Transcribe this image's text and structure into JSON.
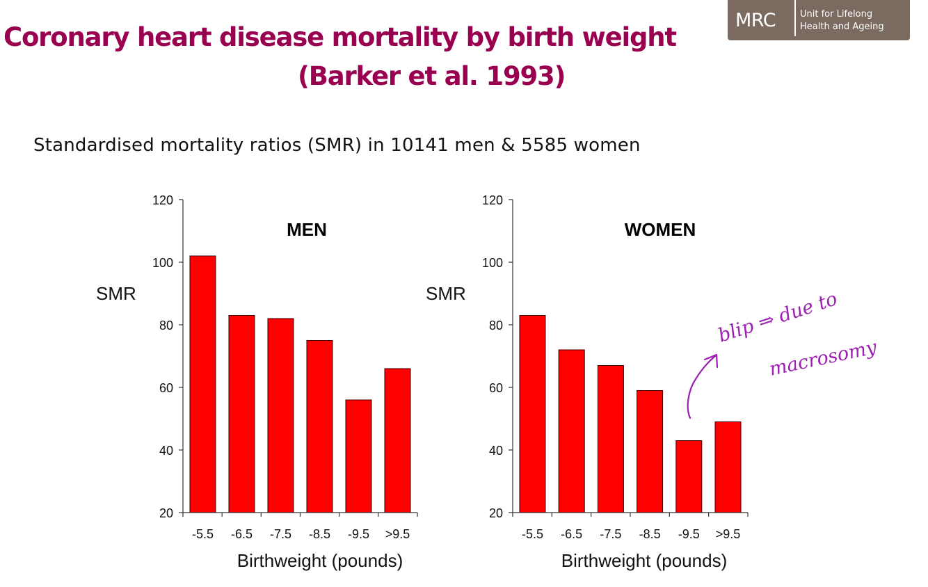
{
  "slide": {
    "title_line1": "Coronary heart disease mortality by birth weight",
    "title_line2": "(Barker et al. 1993)",
    "subtitle": "Standardised mortality ratios (SMR) in 10141 men & 5585 women",
    "logo": {
      "mark": "MRC",
      "line1": "Unit for Lifelong",
      "line2": "Health and Ageing"
    },
    "colors": {
      "title": "#990050",
      "bar": "#ff0000",
      "logo_bg": "#7a6a60",
      "annotation": "#9b1fb0"
    },
    "annotation": {
      "line1": "blip ⇒ due to",
      "line2": "macrosomy"
    }
  },
  "chart_data": [
    {
      "type": "bar",
      "title": "MEN",
      "xlabel": "Birthweight (pounds)",
      "ylabel": "SMR",
      "categories": [
        "-5.5",
        "-6.5",
        "-7.5",
        "-8.5",
        "-9.5",
        ">9.5"
      ],
      "values": [
        102,
        83,
        82,
        75,
        56,
        66
      ],
      "ylim": [
        20,
        120
      ],
      "yticks": [
        20,
        40,
        60,
        80,
        100,
        120
      ],
      "grid": false,
      "bar_color": "#ff0000"
    },
    {
      "type": "bar",
      "title": "WOMEN",
      "xlabel": "Birthweight (pounds)",
      "ylabel": "SMR",
      "categories": [
        "-5.5",
        "-6.5",
        "-7.5",
        "-8.5",
        "-9.5",
        ">9.5"
      ],
      "values": [
        83,
        72,
        67,
        59,
        43,
        49
      ],
      "ylim": [
        20,
        120
      ],
      "yticks": [
        20,
        40,
        60,
        80,
        100,
        120
      ],
      "grid": false,
      "bar_color": "#ff0000"
    }
  ]
}
